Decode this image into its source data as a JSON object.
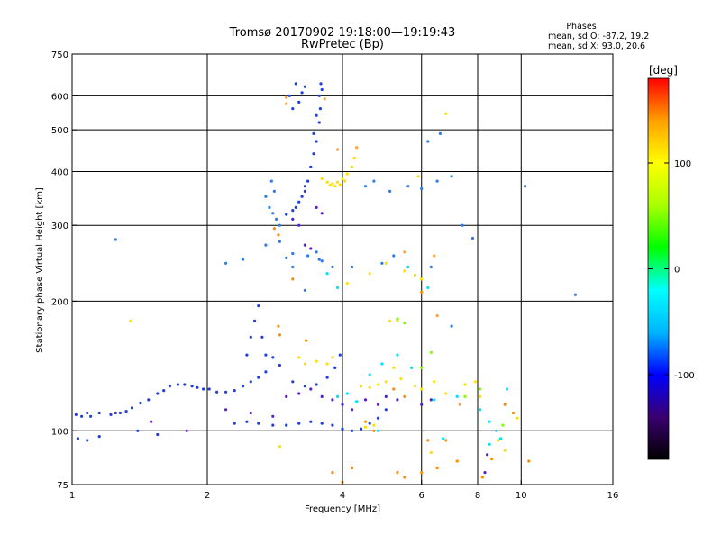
{
  "chart_data": {
    "type": "scatter",
    "title": "Tromsø 20170902 19:18:00—19:19:43",
    "subtitle": "RwPretec (Bp)",
    "xlabel": "Frequency [MHz]",
    "ylabel": "Stationary phase Virtual Height [km]",
    "x_scale": "log2",
    "y_scale": "log",
    "xlim": [
      1,
      16
    ],
    "ylim": [
      75,
      750
    ],
    "x_ticks": [
      1,
      2,
      4,
      6,
      8,
      10,
      16
    ],
    "x_tick_labels": [
      "1",
      "2",
      "4",
      "6",
      "8",
      "10",
      "16"
    ],
    "y_ticks": [
      75,
      100,
      200,
      300,
      400,
      500,
      600,
      750
    ],
    "y_tick_labels": [
      "75",
      "100",
      "200",
      "300",
      "400",
      "500",
      "600",
      "750"
    ],
    "x_gridlines": [
      2,
      4,
      6,
      8,
      10
    ],
    "y_gridlines": [
      100,
      200,
      300,
      400,
      500,
      600
    ],
    "grid": true,
    "stats": {
      "title": "Phases",
      "line1": "mean, sd,O: -87.2, 19.2",
      "line2": "mean, sd,X:  93.0, 20.6"
    },
    "colorbar": {
      "label": "[deg]",
      "range": [
        -180,
        180
      ],
      "ticks": [
        100,
        0,
        -100
      ],
      "tick_labels": [
        "100",
        "0",
        "-100"
      ],
      "colors": [
        "#000000",
        "#3a0070",
        "#0000ff",
        "#00b4ff",
        "#00ffff",
        "#00ff00",
        "#aaff00",
        "#ffff00",
        "#ffa000",
        "#ff0000"
      ]
    },
    "series": [
      {
        "color": "#1f3fe0",
        "points": [
          [
            1.02,
            109
          ],
          [
            1.05,
            108
          ],
          [
            1.08,
            110
          ],
          [
            1.1,
            108
          ],
          [
            1.15,
            110
          ],
          [
            1.22,
            109
          ],
          [
            1.28,
            110
          ],
          [
            1.32,
            111
          ],
          [
            1.36,
            113
          ],
          [
            1.42,
            116
          ],
          [
            1.48,
            118
          ],
          [
            1.55,
            122
          ],
          [
            1.6,
            124
          ],
          [
            1.65,
            127
          ],
          [
            1.72,
            128
          ],
          [
            1.78,
            128
          ],
          [
            1.85,
            127
          ],
          [
            1.9,
            126
          ],
          [
            1.96,
            125
          ],
          [
            2.02,
            125
          ],
          [
            2.1,
            123
          ],
          [
            2.2,
            123
          ],
          [
            2.3,
            124
          ],
          [
            2.4,
            127
          ],
          [
            2.5,
            130
          ],
          [
            2.6,
            133
          ],
          [
            2.7,
            137
          ],
          [
            2.45,
            150
          ],
          [
            2.5,
            165
          ],
          [
            2.55,
            180
          ],
          [
            2.6,
            195
          ],
          [
            2.65,
            165
          ],
          [
            2.7,
            150
          ],
          [
            2.8,
            148
          ],
          [
            2.9,
            142
          ],
          [
            3.1,
            130
          ],
          [
            3.3,
            127
          ],
          [
            3.5,
            128
          ],
          [
            3.7,
            133
          ],
          [
            3.85,
            140
          ],
          [
            3.95,
            150
          ],
          [
            2.3,
            104
          ],
          [
            2.45,
            105
          ],
          [
            2.6,
            104
          ],
          [
            2.8,
            103
          ],
          [
            3.0,
            103
          ],
          [
            3.2,
            104
          ],
          [
            3.4,
            105
          ],
          [
            3.6,
            104
          ],
          [
            3.8,
            103
          ],
          [
            4.0,
            101
          ],
          [
            4.2,
            100
          ],
          [
            4.4,
            101
          ],
          [
            4.6,
            104
          ],
          [
            4.8,
            107
          ],
          [
            5.0,
            112
          ],
          [
            1.03,
            96
          ],
          [
            1.08,
            95
          ],
          [
            1.15,
            97
          ],
          [
            1.4,
            100
          ],
          [
            1.55,
            98
          ],
          [
            3.0,
            318
          ],
          [
            3.1,
            325
          ],
          [
            3.2,
            340
          ],
          [
            3.3,
            360
          ],
          [
            3.35,
            380
          ],
          [
            3.4,
            410
          ],
          [
            3.45,
            440
          ],
          [
            3.5,
            470
          ],
          [
            3.55,
            520
          ],
          [
            3.57,
            560
          ],
          [
            3.6,
            620
          ],
          [
            3.15,
            330
          ],
          [
            3.25,
            350
          ],
          [
            3.3,
            370
          ],
          [
            3.45,
            490
          ],
          [
            3.5,
            540
          ],
          [
            3.55,
            600
          ],
          [
            3.58,
            640
          ],
          [
            3.05,
            600
          ],
          [
            3.1,
            560
          ],
          [
            3.2,
            580
          ],
          [
            3.25,
            610
          ],
          [
            3.3,
            630
          ],
          [
            3.15,
            640
          ]
        ]
      },
      {
        "color": "#2a7af0",
        "points": [
          [
            2.7,
            350
          ],
          [
            2.75,
            330
          ],
          [
            2.8,
            320
          ],
          [
            2.85,
            310
          ],
          [
            2.9,
            300
          ],
          [
            2.78,
            380
          ],
          [
            2.82,
            360
          ],
          [
            2.7,
            270
          ],
          [
            2.9,
            275
          ],
          [
            3.0,
            252
          ],
          [
            3.1,
            258
          ],
          [
            3.35,
            255
          ],
          [
            3.5,
            260
          ],
          [
            3.55,
            250
          ],
          [
            2.2,
            245
          ],
          [
            2.4,
            250
          ],
          [
            3.1,
            240
          ],
          [
            3.3,
            212
          ],
          [
            3.6,
            248
          ],
          [
            3.8,
            240
          ],
          [
            4.2,
            240
          ],
          [
            4.9,
            245
          ],
          [
            5.2,
            255
          ],
          [
            6.3,
            240
          ],
          [
            4.5,
            370
          ],
          [
            4.7,
            380
          ],
          [
            5.1,
            360
          ],
          [
            5.6,
            370
          ],
          [
            6.0,
            365
          ],
          [
            6.5,
            380
          ],
          [
            7.0,
            390
          ],
          [
            7.4,
            300
          ],
          [
            7.8,
            280
          ],
          [
            1.25,
            278
          ],
          [
            10.2,
            370
          ],
          [
            13.2,
            207
          ],
          [
            7.0,
            175
          ],
          [
            6.2,
            470
          ],
          [
            6.6,
            490
          ]
        ]
      },
      {
        "color": "#ffe000",
        "points": [
          [
            3.6,
            385
          ],
          [
            3.7,
            378
          ],
          [
            3.8,
            375
          ],
          [
            3.9,
            378
          ],
          [
            4.0,
            385
          ],
          [
            4.1,
            395
          ],
          [
            4.2,
            410
          ],
          [
            4.25,
            430
          ],
          [
            3.75,
            372
          ],
          [
            3.85,
            370
          ],
          [
            3.95,
            373
          ],
          [
            4.05,
            380
          ],
          [
            3.3,
            143
          ],
          [
            3.5,
            145
          ],
          [
            3.7,
            143
          ],
          [
            3.8,
            148
          ],
          [
            3.2,
            148
          ],
          [
            4.4,
            127
          ],
          [
            4.6,
            126
          ],
          [
            4.8,
            128
          ],
          [
            5.0,
            130
          ],
          [
            5.2,
            140
          ],
          [
            5.4,
            132
          ],
          [
            5.8,
            127
          ],
          [
            6.0,
            125
          ],
          [
            6.4,
            130
          ],
          [
            6.8,
            122
          ],
          [
            7.5,
            128
          ],
          [
            7.9,
            130
          ],
          [
            8.1,
            120
          ],
          [
            4.5,
            102
          ],
          [
            4.7,
            103
          ],
          [
            5.3,
            180
          ],
          [
            5.1,
            180
          ],
          [
            5.8,
            230
          ],
          [
            6.0,
            225
          ],
          [
            5.5,
            235
          ],
          [
            5.9,
            390
          ],
          [
            6.8,
            545
          ],
          [
            6.3,
            89
          ],
          [
            8.9,
            95
          ],
          [
            9.2,
            90
          ],
          [
            4.1,
            220
          ],
          [
            4.6,
            232
          ],
          [
            5.0,
            245
          ],
          [
            9.8,
            107
          ],
          [
            1.35,
            180
          ],
          [
            2.9,
            92
          ]
        ]
      },
      {
        "color": "#ff8c00",
        "points": [
          [
            2.88,
            175
          ],
          [
            2.9,
            167
          ],
          [
            3.32,
            162
          ],
          [
            3.1,
            225
          ],
          [
            2.88,
            285
          ],
          [
            2.82,
            295
          ],
          [
            4.0,
            76
          ],
          [
            4.2,
            82
          ],
          [
            4.5,
            105
          ],
          [
            4.7,
            100
          ],
          [
            5.3,
            80
          ],
          [
            5.5,
            78
          ],
          [
            6.0,
            80
          ],
          [
            6.2,
            95
          ],
          [
            6.5,
            82
          ],
          [
            6.8,
            95
          ],
          [
            7.2,
            85
          ],
          [
            8.2,
            78
          ],
          [
            8.6,
            86
          ],
          [
            9.2,
            115
          ],
          [
            9.6,
            110
          ],
          [
            10.4,
            85
          ],
          [
            3.8,
            80
          ],
          [
            6.0,
            210
          ],
          [
            5.2,
            125
          ],
          [
            5.5,
            120
          ]
        ]
      },
      {
        "color": "#00e0ff",
        "points": [
          [
            3.9,
            120
          ],
          [
            4.1,
            122
          ],
          [
            4.3,
            117
          ],
          [
            4.6,
            135
          ],
          [
            4.9,
            143
          ],
          [
            5.3,
            150
          ],
          [
            5.7,
            140
          ],
          [
            6.4,
            118
          ],
          [
            7.2,
            120
          ],
          [
            8.1,
            112
          ],
          [
            8.5,
            105
          ],
          [
            8.8,
            100
          ],
          [
            9.0,
            96
          ],
          [
            8.5,
            93
          ],
          [
            4.8,
            100
          ],
          [
            6.7,
            96
          ],
          [
            9.3,
            125
          ],
          [
            5.6,
            240
          ],
          [
            6.2,
            215
          ],
          [
            3.7,
            232
          ],
          [
            3.9,
            215
          ]
        ]
      },
      {
        "color": "#5a1fd0",
        "points": [
          [
            3.0,
            120
          ],
          [
            3.2,
            122
          ],
          [
            3.4,
            125
          ],
          [
            3.6,
            120
          ],
          [
            3.8,
            118
          ],
          [
            4.0,
            115
          ],
          [
            4.2,
            112
          ],
          [
            4.5,
            118
          ],
          [
            4.8,
            115
          ],
          [
            5.0,
            120
          ],
          [
            5.3,
            118
          ],
          [
            6.0,
            115
          ],
          [
            6.3,
            118
          ],
          [
            2.2,
            112
          ],
          [
            2.5,
            110
          ],
          [
            2.8,
            108
          ],
          [
            3.3,
            270
          ],
          [
            3.4,
            265
          ],
          [
            3.2,
            300
          ],
          [
            3.5,
            330
          ],
          [
            3.6,
            320
          ],
          [
            3.1,
            310
          ],
          [
            1.25,
            110
          ],
          [
            1.5,
            105
          ],
          [
            1.8,
            100
          ],
          [
            8.4,
            88
          ],
          [
            8.3,
            80
          ]
        ]
      },
      {
        "color": "#ffa040",
        "points": [
          [
            3.0,
            595
          ],
          [
            3.0,
            575
          ],
          [
            3.65,
            590
          ],
          [
            3.9,
            450
          ],
          [
            4.3,
            455
          ],
          [
            5.5,
            260
          ],
          [
            6.4,
            255
          ],
          [
            6.5,
            185
          ],
          [
            7.3,
            115
          ]
        ]
      },
      {
        "color": "#7fff00",
        "points": [
          [
            5.3,
            182
          ],
          [
            5.5,
            178
          ],
          [
            6.0,
            140
          ],
          [
            6.3,
            152
          ],
          [
            8.1,
            125
          ],
          [
            9.1,
            103
          ],
          [
            7.5,
            120
          ]
        ]
      }
    ]
  }
}
